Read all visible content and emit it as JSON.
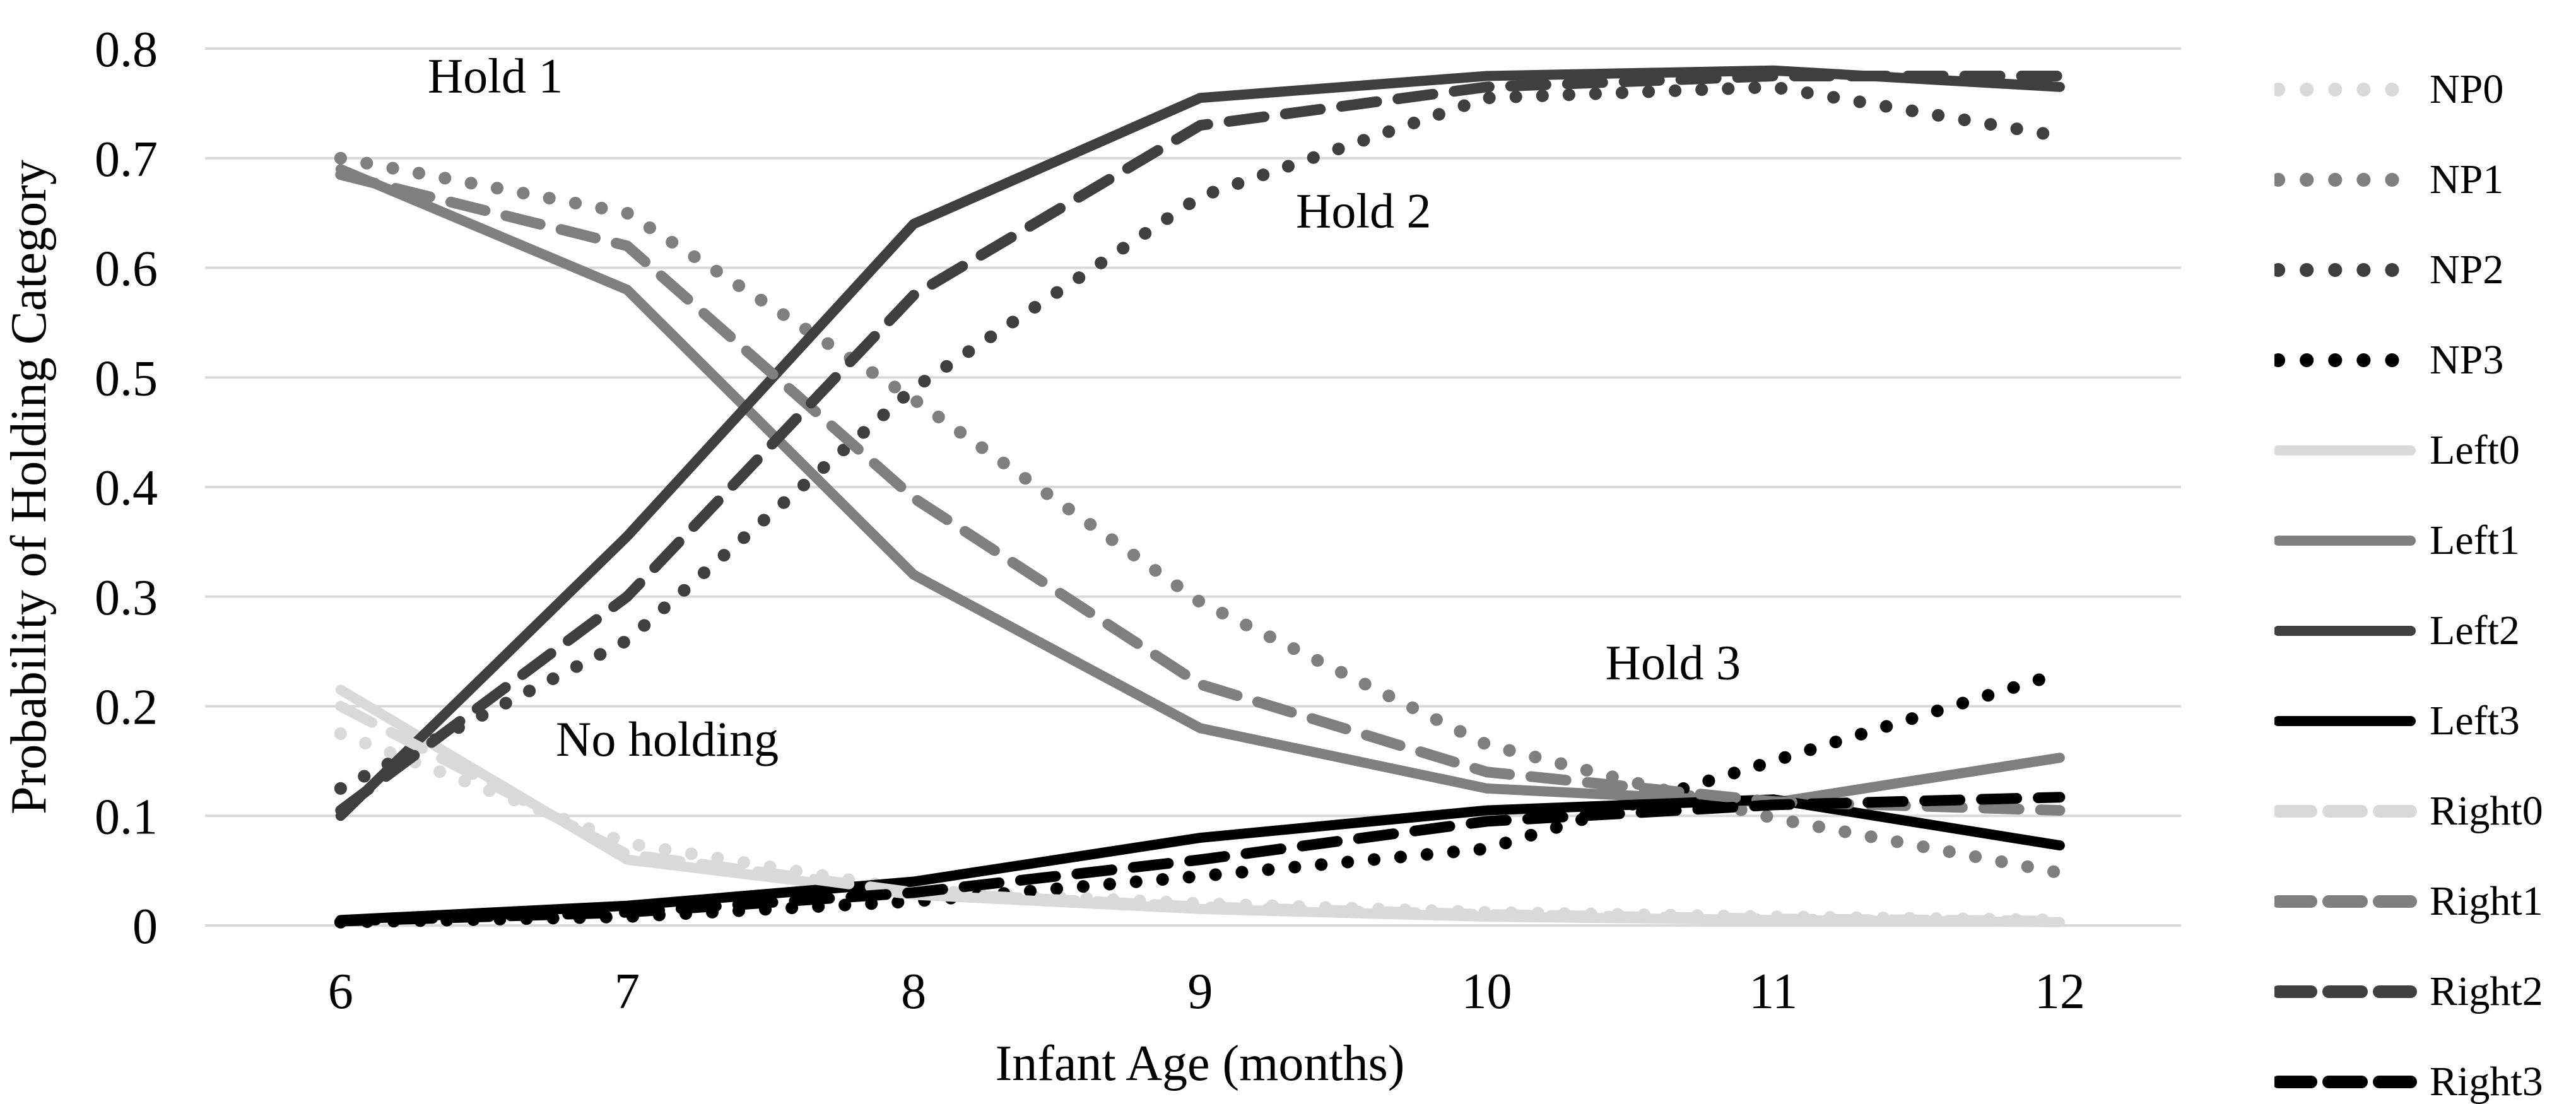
{
  "chart_data": {
    "type": "line",
    "title": "",
    "xlabel": "Infant Age (months)",
    "ylabel": "Probability of Holding Category",
    "x": [
      6,
      7,
      8,
      9,
      10,
      11,
      12
    ],
    "x_tick_labels": [
      "6",
      "7",
      "8",
      "9",
      "10",
      "11",
      "12"
    ],
    "y_ticks": [
      "0",
      "0.1",
      "0.2",
      "0.3",
      "0.4",
      "0.5",
      "0.6",
      "0.7",
      "0.8"
    ],
    "xlim": [
      5.527,
      12.423
    ],
    "ylim": [
      0,
      0.8
    ],
    "grid": true,
    "gridline_color": "#d9d9d9",
    "background": "#ffffff",
    "legend_position": "right",
    "palette": {
      "shade0": "#d9d9d9",
      "shade1": "#7f7f7f",
      "shade2": "#3f3f3f",
      "shade3": "#000000"
    },
    "series": [
      {
        "name": "NP0",
        "group": "NP",
        "category": 0,
        "style": "dotted",
        "color": "#d9d9d9",
        "values": [
          0.175,
          0.075,
          0.032,
          0.02,
          0.012,
          0.008,
          0.005
        ]
      },
      {
        "name": "NP1",
        "group": "NP",
        "category": 1,
        "style": "dotted",
        "color": "#7f7f7f",
        "values": [
          0.7,
          0.65,
          0.48,
          0.295,
          0.165,
          0.098,
          0.048
        ]
      },
      {
        "name": "NP2",
        "group": "NP",
        "category": 2,
        "style": "dotted",
        "color": "#3f3f3f",
        "values": [
          0.125,
          0.26,
          0.49,
          0.665,
          0.755,
          0.765,
          0.72
        ]
      },
      {
        "name": "NP3",
        "group": "NP",
        "category": 3,
        "style": "dotted",
        "color": "#000000",
        "values": [
          0.003,
          0.008,
          0.022,
          0.045,
          0.07,
          0.15,
          0.23
        ]
      },
      {
        "name": "Left0",
        "group": "Left",
        "category": 0,
        "style": "solid",
        "color": "#d9d9d9",
        "values": [
          0.215,
          0.06,
          0.028,
          0.015,
          0.008,
          0.005,
          0.003
        ]
      },
      {
        "name": "Left1",
        "group": "Left",
        "category": 1,
        "style": "solid",
        "color": "#7f7f7f",
        "values": [
          0.69,
          0.58,
          0.32,
          0.18,
          0.125,
          0.112,
          0.153
        ]
      },
      {
        "name": "Left2",
        "group": "Left",
        "category": 2,
        "style": "solid",
        "color": "#3f3f3f",
        "values": [
          0.1,
          0.355,
          0.64,
          0.755,
          0.775,
          0.78,
          0.765
        ]
      },
      {
        "name": "Left3",
        "group": "Left",
        "category": 3,
        "style": "solid",
        "color": "#000000",
        "values": [
          0.005,
          0.018,
          0.04,
          0.08,
          0.105,
          0.115,
          0.073
        ]
      },
      {
        "name": "Right0",
        "group": "Right",
        "category": 0,
        "style": "dashed",
        "color": "#d9d9d9",
        "values": [
          0.2,
          0.065,
          0.03,
          0.017,
          0.01,
          0.006,
          0.004
        ]
      },
      {
        "name": "Right1",
        "group": "Right",
        "category": 1,
        "style": "dashed",
        "color": "#7f7f7f",
        "values": [
          0.685,
          0.62,
          0.39,
          0.22,
          0.14,
          0.113,
          0.105
        ]
      },
      {
        "name": "Right2",
        "group": "Right",
        "category": 2,
        "style": "dashed",
        "color": "#3f3f3f",
        "values": [
          0.105,
          0.3,
          0.575,
          0.73,
          0.765,
          0.775,
          0.775
        ]
      },
      {
        "name": "Right3",
        "group": "Right",
        "category": 3,
        "style": "dashed",
        "color": "#000000",
        "values": [
          0.004,
          0.012,
          0.03,
          0.06,
          0.095,
          0.11,
          0.117
        ]
      }
    ],
    "annotations": [
      {
        "text": "Hold 1",
        "x": 6.54,
        "y": 0.776
      },
      {
        "text": "Hold 2",
        "x": 9.57,
        "y": 0.653
      },
      {
        "text": "Hold 3",
        "x": 10.65,
        "y": 0.241
      },
      {
        "text": "No holding",
        "x": 7.14,
        "y": 0.171
      }
    ]
  }
}
